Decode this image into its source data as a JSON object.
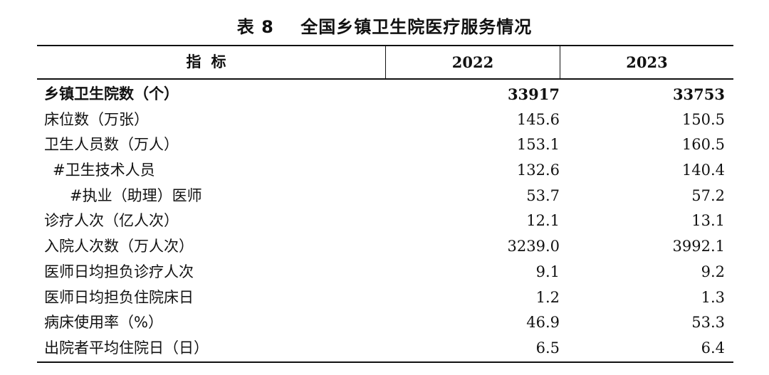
{
  "caption": "表 8    全国乡镇卫生院医疗服务情况",
  "header": {
    "indicator": "指标",
    "col_2022": "2022",
    "col_2023": "2023"
  },
  "rows": [
    {
      "label": "乡镇卫生院数（个）",
      "v2022": "33917",
      "v2023": "33753"
    },
    {
      "label": "床位数（万张）",
      "v2022": "145.6",
      "v2023": "150.5"
    },
    {
      "label": "卫生人员数（万人）",
      "v2022": "153.1",
      "v2023": "160.5"
    },
    {
      "label": "#卫生技术人员",
      "v2022": "132.6",
      "v2023": "140.4"
    },
    {
      "label": "#执业（助理）医师",
      "v2022": "53.7",
      "v2023": "57.2"
    },
    {
      "label": "诊疗人次（亿人次）",
      "v2022": "12.1",
      "v2023": "13.1"
    },
    {
      "label": "入院人次数（万人次）",
      "v2022": "3239.0",
      "v2023": "3992.1"
    },
    {
      "label": "医师日均担负诊疗人次",
      "v2022": "9.1",
      "v2023": "9.2"
    },
    {
      "label": "医师日均担负住院床日",
      "v2022": "1.2",
      "v2023": "1.3"
    },
    {
      "label": "病床使用率（%）",
      "v2022": "46.9",
      "v2023": "53.3"
    },
    {
      "label": "出院者平均住院日（日）",
      "v2022": "6.5",
      "v2023": "6.4"
    }
  ]
}
